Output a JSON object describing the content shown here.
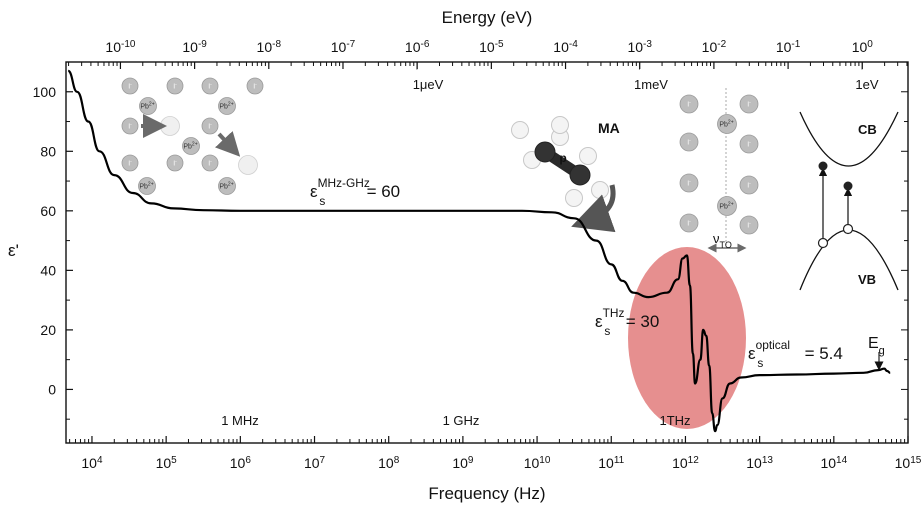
{
  "chart_data": {
    "type": "line",
    "title": "",
    "xlabel": "Frequency (Hz)",
    "ylabel": "ε'",
    "top_axis_label": "Energy (eV)",
    "xscale": "log",
    "xlim_log10": [
      3.65,
      15.0
    ],
    "ylim": [
      -18,
      110
    ],
    "x_ticks": [
      {
        "base": "10",
        "exp": "4"
      },
      {
        "base": "10",
        "exp": "5"
      },
      {
        "base": "10",
        "exp": "6"
      },
      {
        "base": "10",
        "exp": "7"
      },
      {
        "base": "10",
        "exp": "8"
      },
      {
        "base": "10",
        "exp": "9"
      },
      {
        "base": "10",
        "exp": "10"
      },
      {
        "base": "10",
        "exp": "11"
      },
      {
        "base": "10",
        "exp": "12"
      },
      {
        "base": "10",
        "exp": "13"
      },
      {
        "base": "10",
        "exp": "14"
      },
      {
        "base": "10",
        "exp": "15"
      }
    ],
    "y_ticks": [
      "0",
      "20",
      "40",
      "60",
      "80",
      "100"
    ],
    "top_ticks": [
      {
        "base": "10",
        "exp": "-10"
      },
      {
        "base": "10",
        "exp": "-9"
      },
      {
        "base": "10",
        "exp": "-8"
      },
      {
        "base": "10",
        "exp": "-7"
      },
      {
        "base": "10",
        "exp": "-6"
      },
      {
        "base": "10",
        "exp": "-5"
      },
      {
        "base": "10",
        "exp": "-4"
      },
      {
        "base": "10",
        "exp": "-3"
      },
      {
        "base": "10",
        "exp": "-2"
      },
      {
        "base": "10",
        "exp": "-1"
      },
      {
        "base": "10",
        "exp": "0"
      }
    ],
    "series": [
      {
        "log10_x": [
          3.68,
          3.8,
          3.95,
          4.1,
          4.3,
          4.55,
          4.8,
          5.1,
          5.5,
          6.0,
          7.0,
          8.0,
          9.0,
          9.8,
          10.2,
          10.5,
          10.8,
          11.0,
          11.15,
          11.3,
          11.5,
          11.75,
          11.9,
          11.96,
          12.02,
          12.06,
          12.1,
          12.13,
          12.2,
          12.24,
          12.28,
          12.32,
          12.36,
          12.4,
          12.43,
          12.5,
          12.6,
          12.75,
          13.0,
          13.5,
          14.0,
          14.4,
          14.6,
          14.68,
          14.72,
          14.76
        ],
        "y": [
          107,
          100,
          90,
          80,
          72,
          66,
          62.5,
          60.8,
          60.2,
          60,
          60,
          60,
          60,
          60,
          59.5,
          57.5,
          50,
          42,
          36.5,
          32.5,
          31,
          32.5,
          37,
          44,
          45,
          35,
          12,
          2,
          10,
          20,
          18,
          8,
          -8,
          -14,
          -12,
          -3,
          2,
          4,
          4.8,
          5,
          5.3,
          5.6,
          6.5,
          7,
          6.2,
          5.6
        ]
      }
    ],
    "annotations": {
      "mhz_ghz_base": "ε",
      "mhz_ghz_sup": "MHz-GHz",
      "mhz_ghz_sub": "s",
      "mhz_ghz_value": "= 60",
      "thz_base": "ε",
      "thz_sup": "THz",
      "thz_sub": "s",
      "thz_value": "= 30",
      "optical_base": "ε",
      "optical_sup": "optical",
      "optical_sub": "s",
      "optical_value": "= 5.4",
      "eg_base": "E",
      "eg_sub": "g",
      "freq_1mhz": "1 MHz",
      "freq_1ghz": "1 GHz",
      "freq_1thz": "1THz",
      "energy_1uev": "1μeV",
      "energy_1mev": "1meV",
      "energy_1ev": "1eV",
      "ma_label": "MA",
      "dipole_label": "p",
      "nu_base": "ν",
      "nu_sub": "TO",
      "cb_label": "CB",
      "vb_label": "VB",
      "ion_iodide": "I",
      "ion_iodide_charge": "-",
      "ion_lead": "Pb",
      "ion_lead_charge": "2+"
    },
    "highlight_color": "#e27b7b",
    "curve_color": "#000000",
    "grid": false,
    "legend": "none"
  }
}
